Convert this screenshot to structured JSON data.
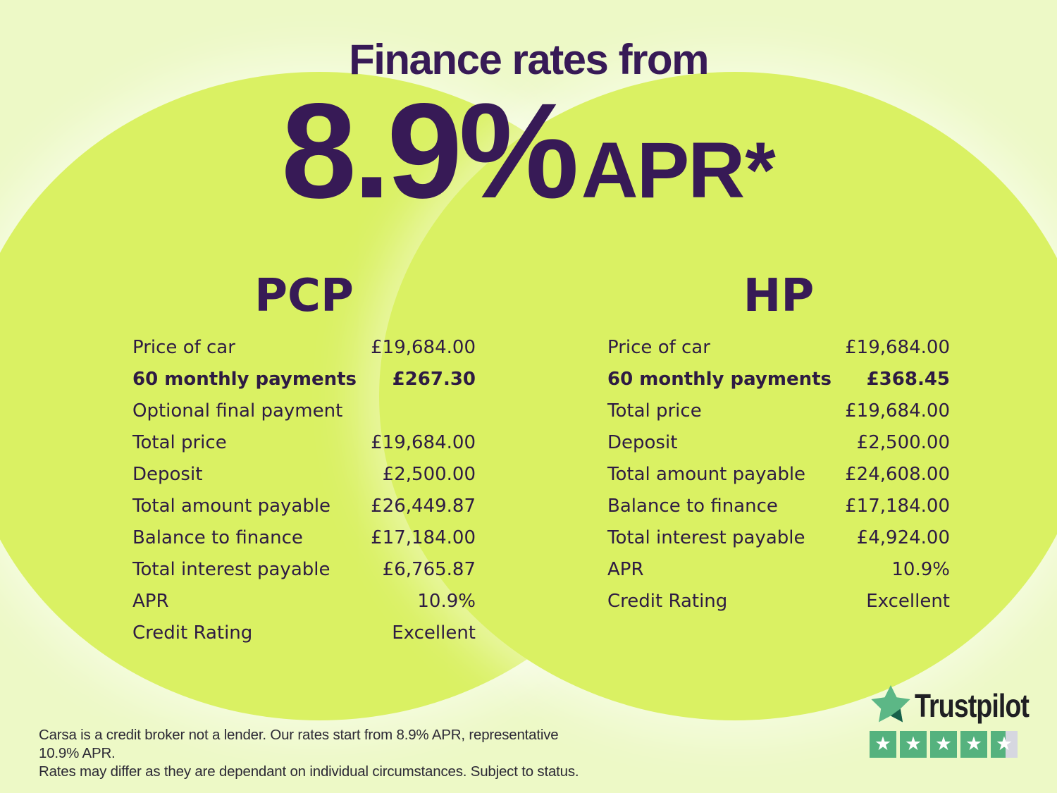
{
  "header": {
    "title": "Finance rates from",
    "rate": "8.9%",
    "unit": "APR",
    "asterisk": "*"
  },
  "pcp": {
    "heading": "PCP",
    "rows": [
      {
        "label": "Price of car",
        "value": "£19,684.00",
        "bold": false
      },
      {
        "label": "60 monthly payments",
        "value": "£267.30",
        "bold": true
      },
      {
        "label": "Optional final payment",
        "value": "",
        "bold": false
      },
      {
        "label": "Total price",
        "value": "£19,684.00",
        "bold": false
      },
      {
        "label": "Deposit",
        "value": "£2,500.00",
        "bold": false
      },
      {
        "label": "Total amount payable",
        "value": "£26,449.87",
        "bold": false
      },
      {
        "label": "Balance to finance",
        "value": "£17,184.00",
        "bold": false
      },
      {
        "label": "Total interest payable",
        "value": "£6,765.87",
        "bold": false
      },
      {
        "label": "APR",
        "value": "10.9%",
        "bold": false
      },
      {
        "label": "Credit Rating",
        "value": "Excellent",
        "bold": false
      }
    ]
  },
  "hp": {
    "heading": "HP",
    "rows": [
      {
        "label": "Price of car",
        "value": "£19,684.00",
        "bold": false
      },
      {
        "label": "60 monthly payments",
        "value": "£368.45",
        "bold": true
      },
      {
        "label": "Total price",
        "value": "£19,684.00",
        "bold": false
      },
      {
        "label": "Deposit",
        "value": "£2,500.00",
        "bold": false
      },
      {
        "label": "Total amount payable",
        "value": "£24,608.00",
        "bold": false
      },
      {
        "label": "Balance to finance",
        "value": "£17,184.00",
        "bold": false
      },
      {
        "label": "Total interest payable",
        "value": "£4,924.00",
        "bold": false
      },
      {
        "label": "APR",
        "value": "10.9%",
        "bold": false
      },
      {
        "label": "Credit Rating",
        "value": "Excellent",
        "bold": false
      }
    ]
  },
  "disclaimer": {
    "line1": "Carsa is a credit broker not a lender. Our rates start from 8.9% APR, representative 10.9% APR.",
    "line2": "Rates may differ as they are dependant on individual circumstances. Subject to status."
  },
  "trustpilot": {
    "brand": "Trustpilot",
    "stars_total": 5,
    "last_star_fill_percent": 55,
    "colors": {
      "square_green": "#55b27e",
      "square_gray": "#d6d7e0",
      "logo_star_green": "#5cb786",
      "logo_star_notch": "#17604a",
      "wordmark": "#1f1f23"
    }
  },
  "colors": {
    "background": "#edf9c6",
    "circle": "#daf163",
    "heading_purple": "#371a56",
    "table_text": "#2e1b43",
    "disclaimer_text": "#2c2935"
  }
}
